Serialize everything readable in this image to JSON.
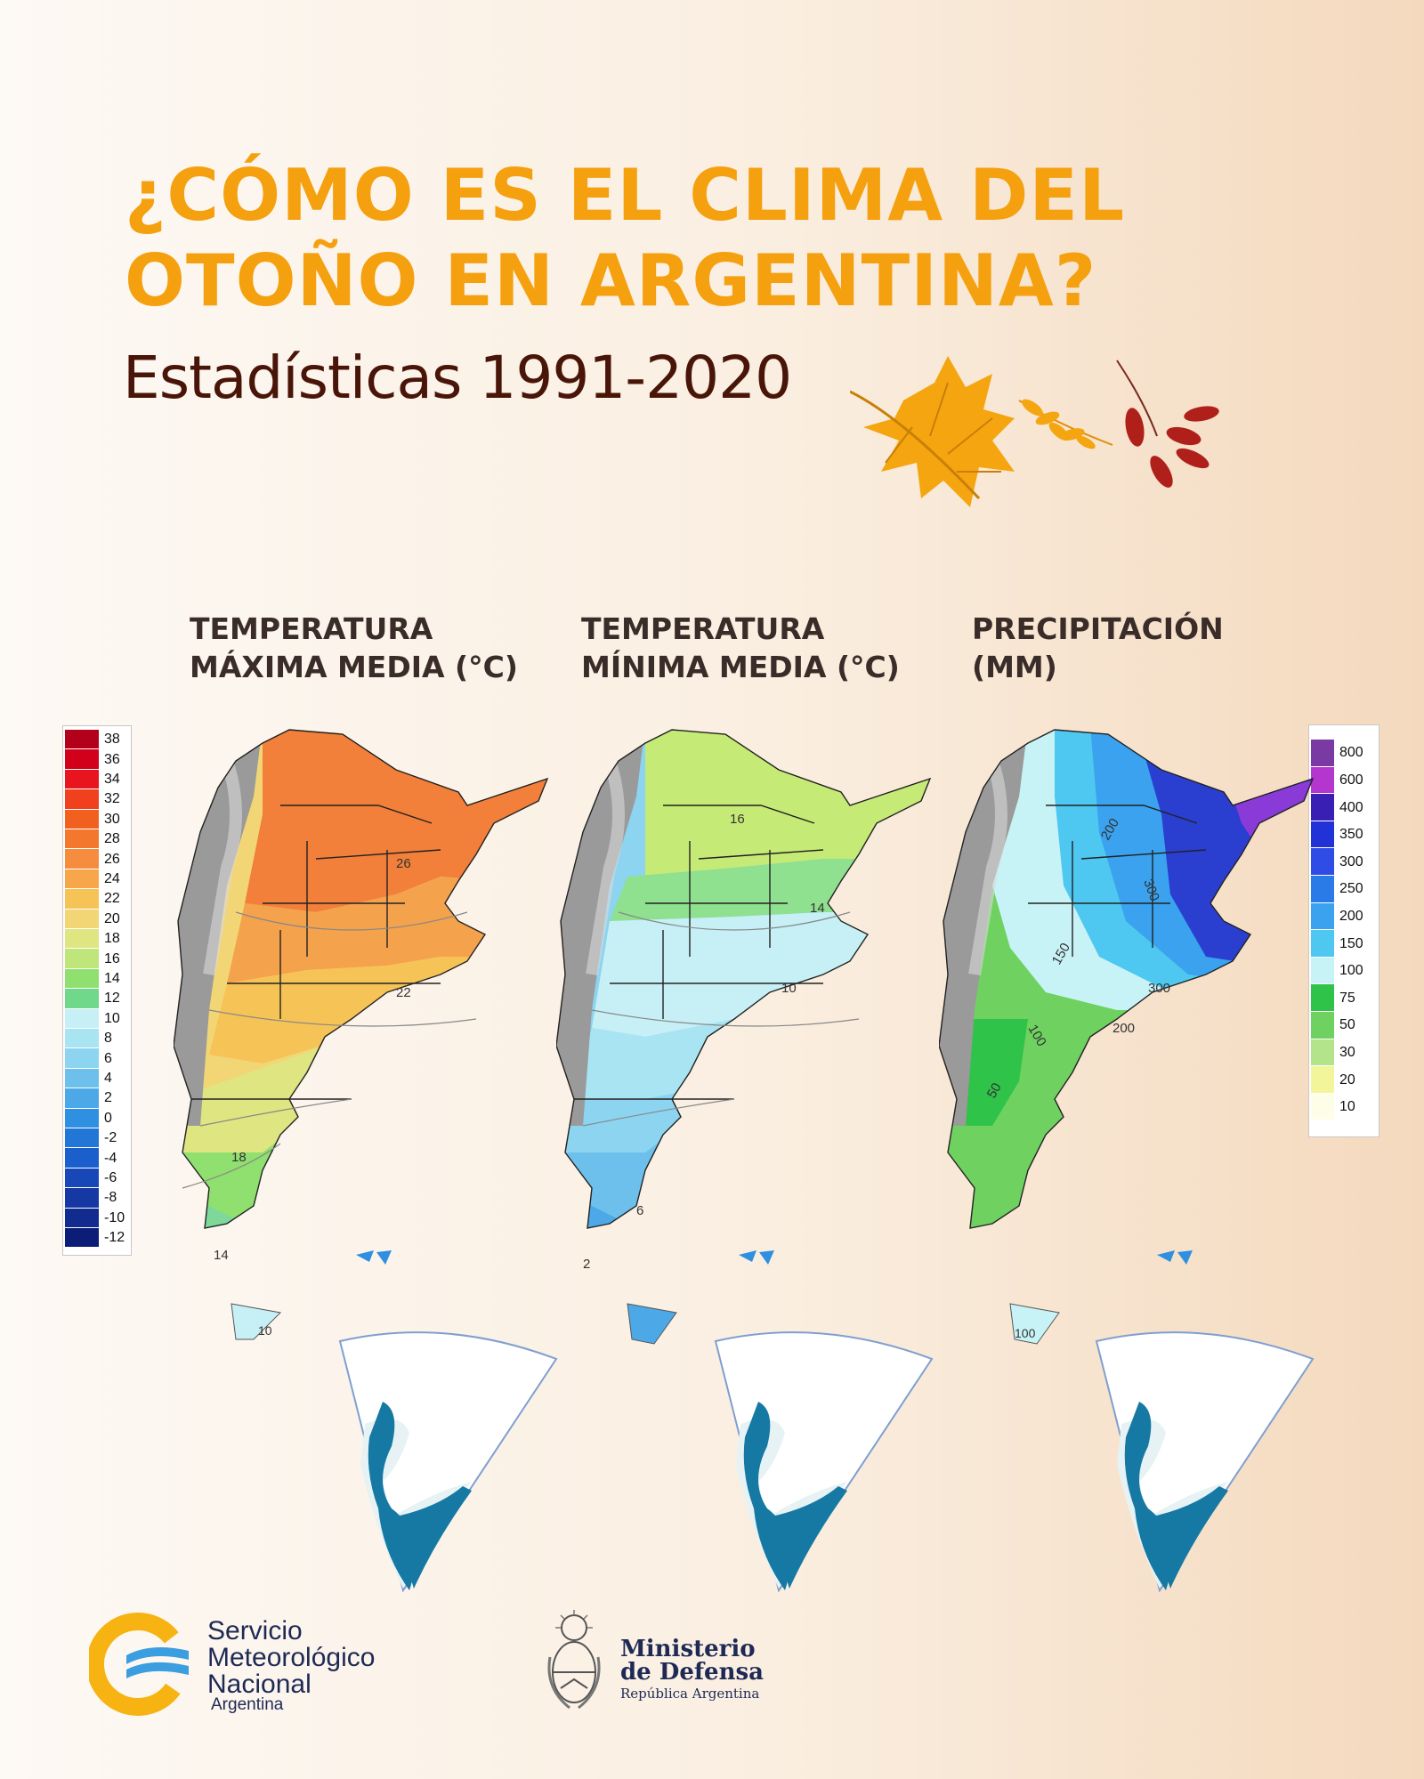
{
  "title": {
    "line1": "¿CÓMO ES EL CLIMA DEL",
    "line2": "OTOÑO EN ARGENTINA?",
    "subtitle": "Estadísticas 1991-2020"
  },
  "maps": [
    {
      "title_line1": "TEMPERATURA",
      "title_line2": "MÁXIMA MEDIA (°C)",
      "contour_labels": [
        "26",
        "22",
        "18",
        "14",
        "10"
      ]
    },
    {
      "title_line1": "TEMPERATURA",
      "title_line2": "MÍNIMA MEDIA (°C)",
      "contour_labels": [
        "16",
        "14",
        "10",
        "6",
        "2"
      ]
    },
    {
      "title_line1": "PRECIPITACIÓN",
      "title_line2": "(MM)",
      "contour_labels": [
        "200",
        "300",
        "300",
        "150",
        "200",
        "100",
        "50",
        "100"
      ]
    }
  ],
  "legend_temperature": {
    "labels": [
      "38",
      "36",
      "34",
      "32",
      "30",
      "28",
      "26",
      "24",
      "22",
      "20",
      "18",
      "16",
      "14",
      "12",
      "10",
      "8",
      "6",
      "4",
      "2",
      "0",
      "-2",
      "-4",
      "-6",
      "-8",
      "-10",
      "-12"
    ],
    "colors": [
      "#b3001b",
      "#d3001c",
      "#e8141e",
      "#f0401e",
      "#f2601f",
      "#f3782d",
      "#f58c3e",
      "#f7a64b",
      "#f6c357",
      "#f2d675",
      "#dfe580",
      "#bfe67a",
      "#8fe06e",
      "#6fd88a",
      "#c6f0f6",
      "#a9e4f3",
      "#8cd4f0",
      "#6dc0ec",
      "#4da8e8",
      "#2f8fe0",
      "#2176d6",
      "#1a5fcc",
      "#1848b8",
      "#1538a3",
      "#122b8e",
      "#0c1d78"
    ]
  },
  "legend_precip": {
    "labels": [
      "800",
      "600",
      "400",
      "350",
      "300",
      "250",
      "200",
      "150",
      "100",
      "75",
      "50",
      "30",
      "20",
      "10"
    ],
    "colors": [
      "#7a3aa3",
      "#b535cf",
      "#3a1fb5",
      "#2232d6",
      "#2f4de6",
      "#2a7be8",
      "#3aa2ee",
      "#4ec8f0",
      "#c8f3f6",
      "#2fc34a",
      "#6fd260",
      "#b3e38a",
      "#f2f59a",
      "#fdfde8"
    ]
  },
  "logos": {
    "smn_line1": "Servicio",
    "smn_line2": "Meteorológico",
    "smn_line3": "Nacional",
    "smn_line4": "Argentina",
    "mindef_line1": "Ministerio",
    "mindef_line2": "de Defensa",
    "mindef_line3": "República Argentina"
  }
}
